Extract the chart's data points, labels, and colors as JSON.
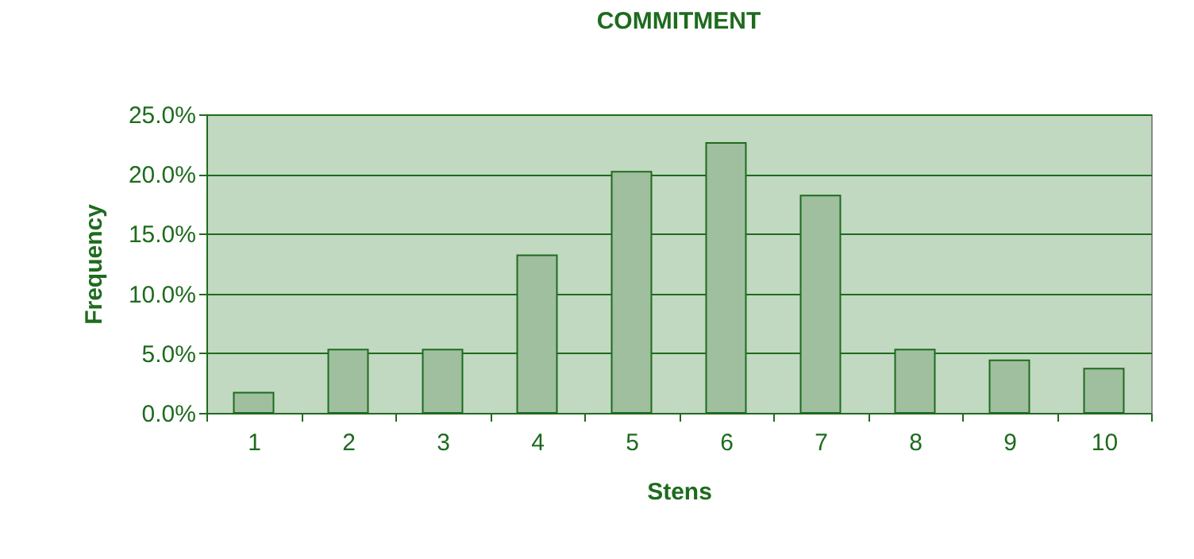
{
  "chart_data": {
    "type": "bar",
    "title": "COMMITMENT",
    "xlabel": "Stens",
    "ylabel": "Frequency",
    "categories": [
      "1",
      "2",
      "3",
      "4",
      "5",
      "6",
      "7",
      "8",
      "9",
      "10"
    ],
    "values": [
      1.7,
      5.3,
      5.3,
      13.2,
      20.2,
      22.6,
      18.2,
      5.3,
      4.4,
      3.7
    ],
    "color": "#9fbf9f",
    "ylim": [
      0,
      25
    ],
    "yticks": [
      {
        "value": 0,
        "label": "0.0%"
      },
      {
        "value": 5,
        "label": "5.0%"
      },
      {
        "value": 10,
        "label": "10.0%"
      },
      {
        "value": 15,
        "label": "15.0%"
      },
      {
        "value": 20,
        "label": "20.0%"
      },
      {
        "value": 25,
        "label": "25.0%"
      }
    ],
    "grid": "y"
  }
}
